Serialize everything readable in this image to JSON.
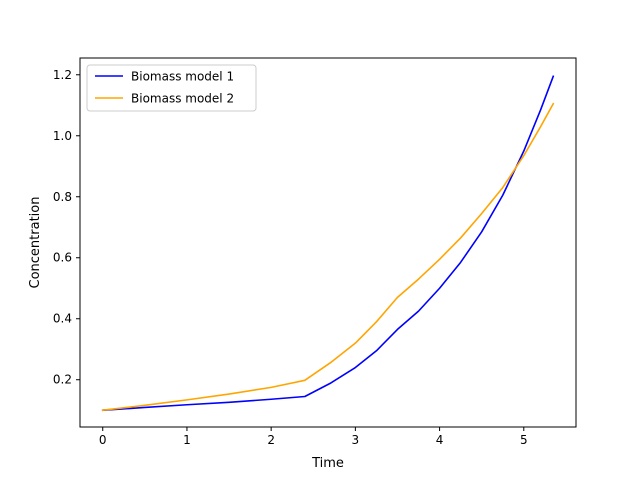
{
  "chart_data": {
    "type": "line",
    "title": "",
    "xlabel": "Time",
    "ylabel": "Concentration",
    "xlim": [
      -0.27,
      5.62
    ],
    "ylim": [
      0.045,
      1.255
    ],
    "x_ticks": [
      0,
      1,
      2,
      3,
      4,
      5
    ],
    "x_tick_labels": [
      "0",
      "1",
      "2",
      "3",
      "4",
      "5"
    ],
    "y_ticks": [
      0.2,
      0.4,
      0.6,
      0.8,
      1.0,
      1.2
    ],
    "y_tick_labels": [
      "0.2",
      "0.4",
      "0.6",
      "0.8",
      "1.0",
      "1.2"
    ],
    "grid": false,
    "legend": {
      "placement": "top-left",
      "entries": [
        "Biomass model 1",
        "Biomass model 2"
      ]
    },
    "series": [
      {
        "name": "Biomass model 1",
        "color": "#0000ff",
        "x": [
          0,
          0.5,
          1.0,
          1.5,
          2.0,
          2.4,
          2.7,
          3.0,
          3.25,
          3.5,
          3.75,
          4.0,
          4.25,
          4.5,
          4.75,
          5.0,
          5.2,
          5.35
        ],
        "y": [
          0.1,
          0.109,
          0.118,
          0.126,
          0.136,
          0.145,
          0.188,
          0.24,
          0.295,
          0.365,
          0.425,
          0.5,
          0.585,
          0.685,
          0.805,
          0.95,
          1.085,
          1.195
        ]
      },
      {
        "name": "Biomass model 2",
        "color": "#ffa500",
        "x": [
          0,
          0.5,
          1.0,
          1.5,
          2.0,
          2.4,
          2.7,
          3.0,
          3.25,
          3.5,
          3.75,
          4.0,
          4.25,
          4.5,
          4.75,
          5.0,
          5.2,
          5.35
        ],
        "y": [
          0.1,
          0.116,
          0.134,
          0.153,
          0.175,
          0.198,
          0.255,
          0.32,
          0.39,
          0.47,
          0.53,
          0.595,
          0.665,
          0.745,
          0.83,
          0.935,
          1.03,
          1.105
        ]
      }
    ]
  }
}
